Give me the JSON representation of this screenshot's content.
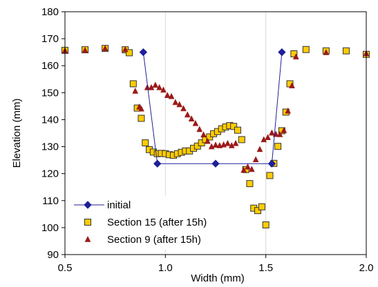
{
  "chart_data": {
    "type": "scatter",
    "title": "",
    "xlabel": "Width (mm)",
    "ylabel": "Elevation (mm)",
    "xlim": [
      0.5,
      2.0
    ],
    "ylim": [
      90,
      180
    ],
    "xticks": [
      "0.5",
      "1.0",
      "1.5",
      "2.0"
    ],
    "yticks": [
      "90",
      "100",
      "110",
      "120",
      "130",
      "140",
      "150",
      "160",
      "170",
      "180"
    ],
    "grid": "vertical gridlines",
    "legend_position": "bottom-left",
    "series": [
      {
        "name": "initial",
        "marker": "diamond-line",
        "color": "#1f1f99",
        "points": [
          [
            0.89,
            165.0
          ],
          [
            0.96,
            123.7
          ],
          [
            1.25,
            123.7
          ],
          [
            1.53,
            123.7
          ],
          [
            1.58,
            165.0
          ]
        ]
      },
      {
        "name": "Section 15 (after 15h)",
        "marker": "square",
        "color": "#ffcc00",
        "edge": "#333333",
        "points": [
          [
            0.5,
            165.7
          ],
          [
            0.6,
            165.9
          ],
          [
            0.7,
            166.4
          ],
          [
            0.8,
            165.9
          ],
          [
            0.82,
            164.8
          ],
          [
            0.84,
            153.3
          ],
          [
            0.86,
            144.3
          ],
          [
            0.88,
            140.5
          ],
          [
            0.9,
            131.4
          ],
          [
            0.92,
            128.9
          ],
          [
            0.94,
            128.0
          ],
          [
            0.96,
            127.4
          ],
          [
            0.98,
            127.5
          ],
          [
            1.0,
            127.4
          ],
          [
            1.02,
            127.0
          ],
          [
            1.04,
            126.8
          ],
          [
            1.06,
            127.4
          ],
          [
            1.08,
            127.9
          ],
          [
            1.1,
            128.4
          ],
          [
            1.12,
            128.4
          ],
          [
            1.14,
            129.4
          ],
          [
            1.16,
            130.2
          ],
          [
            1.18,
            131.4
          ],
          [
            1.2,
            132.6
          ],
          [
            1.22,
            133.6
          ],
          [
            1.24,
            134.8
          ],
          [
            1.26,
            135.6
          ],
          [
            1.28,
            136.6
          ],
          [
            1.3,
            137.3
          ],
          [
            1.32,
            137.8
          ],
          [
            1.34,
            137.5
          ],
          [
            1.36,
            136.1
          ],
          [
            1.38,
            132.6
          ],
          [
            1.4,
            121.5
          ],
          [
            1.42,
            116.3
          ],
          [
            1.44,
            107.2
          ],
          [
            1.46,
            106.3
          ],
          [
            1.48,
            107.7
          ],
          [
            1.5,
            101.0
          ],
          [
            1.52,
            119.3
          ],
          [
            1.54,
            123.8
          ],
          [
            1.56,
            130.1
          ],
          [
            1.58,
            135.9
          ],
          [
            1.6,
            142.8
          ],
          [
            1.62,
            153.3
          ],
          [
            1.64,
            164.4
          ],
          [
            1.7,
            166.0
          ],
          [
            1.8,
            165.5
          ],
          [
            1.9,
            165.5
          ],
          [
            2.0,
            164.2
          ]
        ]
      },
      {
        "name": "Section 9 (after 15h)",
        "marker": "triangle",
        "color": "#9b1a1a",
        "points": [
          [
            0.5,
            165.6
          ],
          [
            0.6,
            165.7
          ],
          [
            0.7,
            166.4
          ],
          [
            0.8,
            166.0
          ],
          [
            0.85,
            150.6
          ],
          [
            0.87,
            144.7
          ],
          [
            0.88,
            144.0
          ],
          [
            0.91,
            151.9
          ],
          [
            0.93,
            151.9
          ],
          [
            0.95,
            152.8
          ],
          [
            0.97,
            151.9
          ],
          [
            0.99,
            151.0
          ],
          [
            1.01,
            149.0
          ],
          [
            1.03,
            148.6
          ],
          [
            1.05,
            146.4
          ],
          [
            1.07,
            145.6
          ],
          [
            1.09,
            144.1
          ],
          [
            1.11,
            141.8
          ],
          [
            1.13,
            140.3
          ],
          [
            1.15,
            138.6
          ],
          [
            1.17,
            136.4
          ],
          [
            1.19,
            134.4
          ],
          [
            1.21,
            132.0
          ],
          [
            1.23,
            130.0
          ],
          [
            1.25,
            130.6
          ],
          [
            1.27,
            130.4
          ],
          [
            1.29,
            130.7
          ],
          [
            1.31,
            131.2
          ],
          [
            1.33,
            130.4
          ],
          [
            1.35,
            131.2
          ],
          [
            1.39,
            121.3
          ],
          [
            1.41,
            122.5
          ],
          [
            1.43,
            121.6
          ],
          [
            1.45,
            125.2
          ],
          [
            1.47,
            129.0
          ],
          [
            1.49,
            132.6
          ],
          [
            1.51,
            133.4
          ],
          [
            1.53,
            135.1
          ],
          [
            1.55,
            134.6
          ],
          [
            1.57,
            134.5
          ],
          [
            1.59,
            136.0
          ],
          [
            1.61,
            143.2
          ],
          [
            1.63,
            152.6
          ],
          [
            1.65,
            163.3
          ],
          [
            1.8,
            164.9
          ],
          [
            2.0,
            164.5
          ]
        ]
      }
    ]
  }
}
